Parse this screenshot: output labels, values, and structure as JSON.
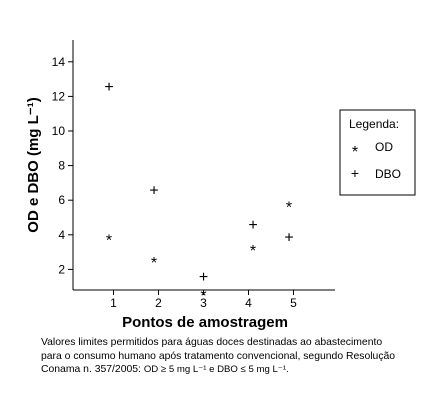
{
  "chart_data": {
    "type": "scatter",
    "title": "",
    "xlabel": "Pontos de amostragem",
    "ylabel": "OD e DBO (mg L⁻¹)",
    "xticks": [
      "1",
      "2",
      "3",
      "4",
      "5"
    ],
    "yticks": [
      "2",
      "4",
      "6",
      "8",
      "10",
      "12",
      "14"
    ],
    "ylim": [
      0,
      15
    ],
    "grid": false,
    "legend_position": "right",
    "legend_title": "Legenda:",
    "series": [
      {
        "name": "OD",
        "marker": "*",
        "x": [
          0.9,
          1.9,
          3.0,
          4.1,
          4.9
        ],
        "y": [
          3.9,
          2.6,
          0.7,
          3.3,
          5.8
        ]
      },
      {
        "name": "DBO",
        "marker": "+",
        "x": [
          0.9,
          1.9,
          3.0,
          4.1,
          4.9
        ],
        "y": [
          12.5,
          6.5,
          1.5,
          4.5,
          3.8
        ]
      }
    ]
  },
  "caption": {
    "line1": "Valores limites permitidos para águas doces destinadas ao abastecimento",
    "line2": "para o consumo humano após tratamento convencional, segundo Resolução",
    "line3_prefix": "Conama n. 357/2005:",
    "formula": "OD ≥ 5 mg L⁻¹  e  DBO ≤ 5 mg L⁻¹."
  }
}
